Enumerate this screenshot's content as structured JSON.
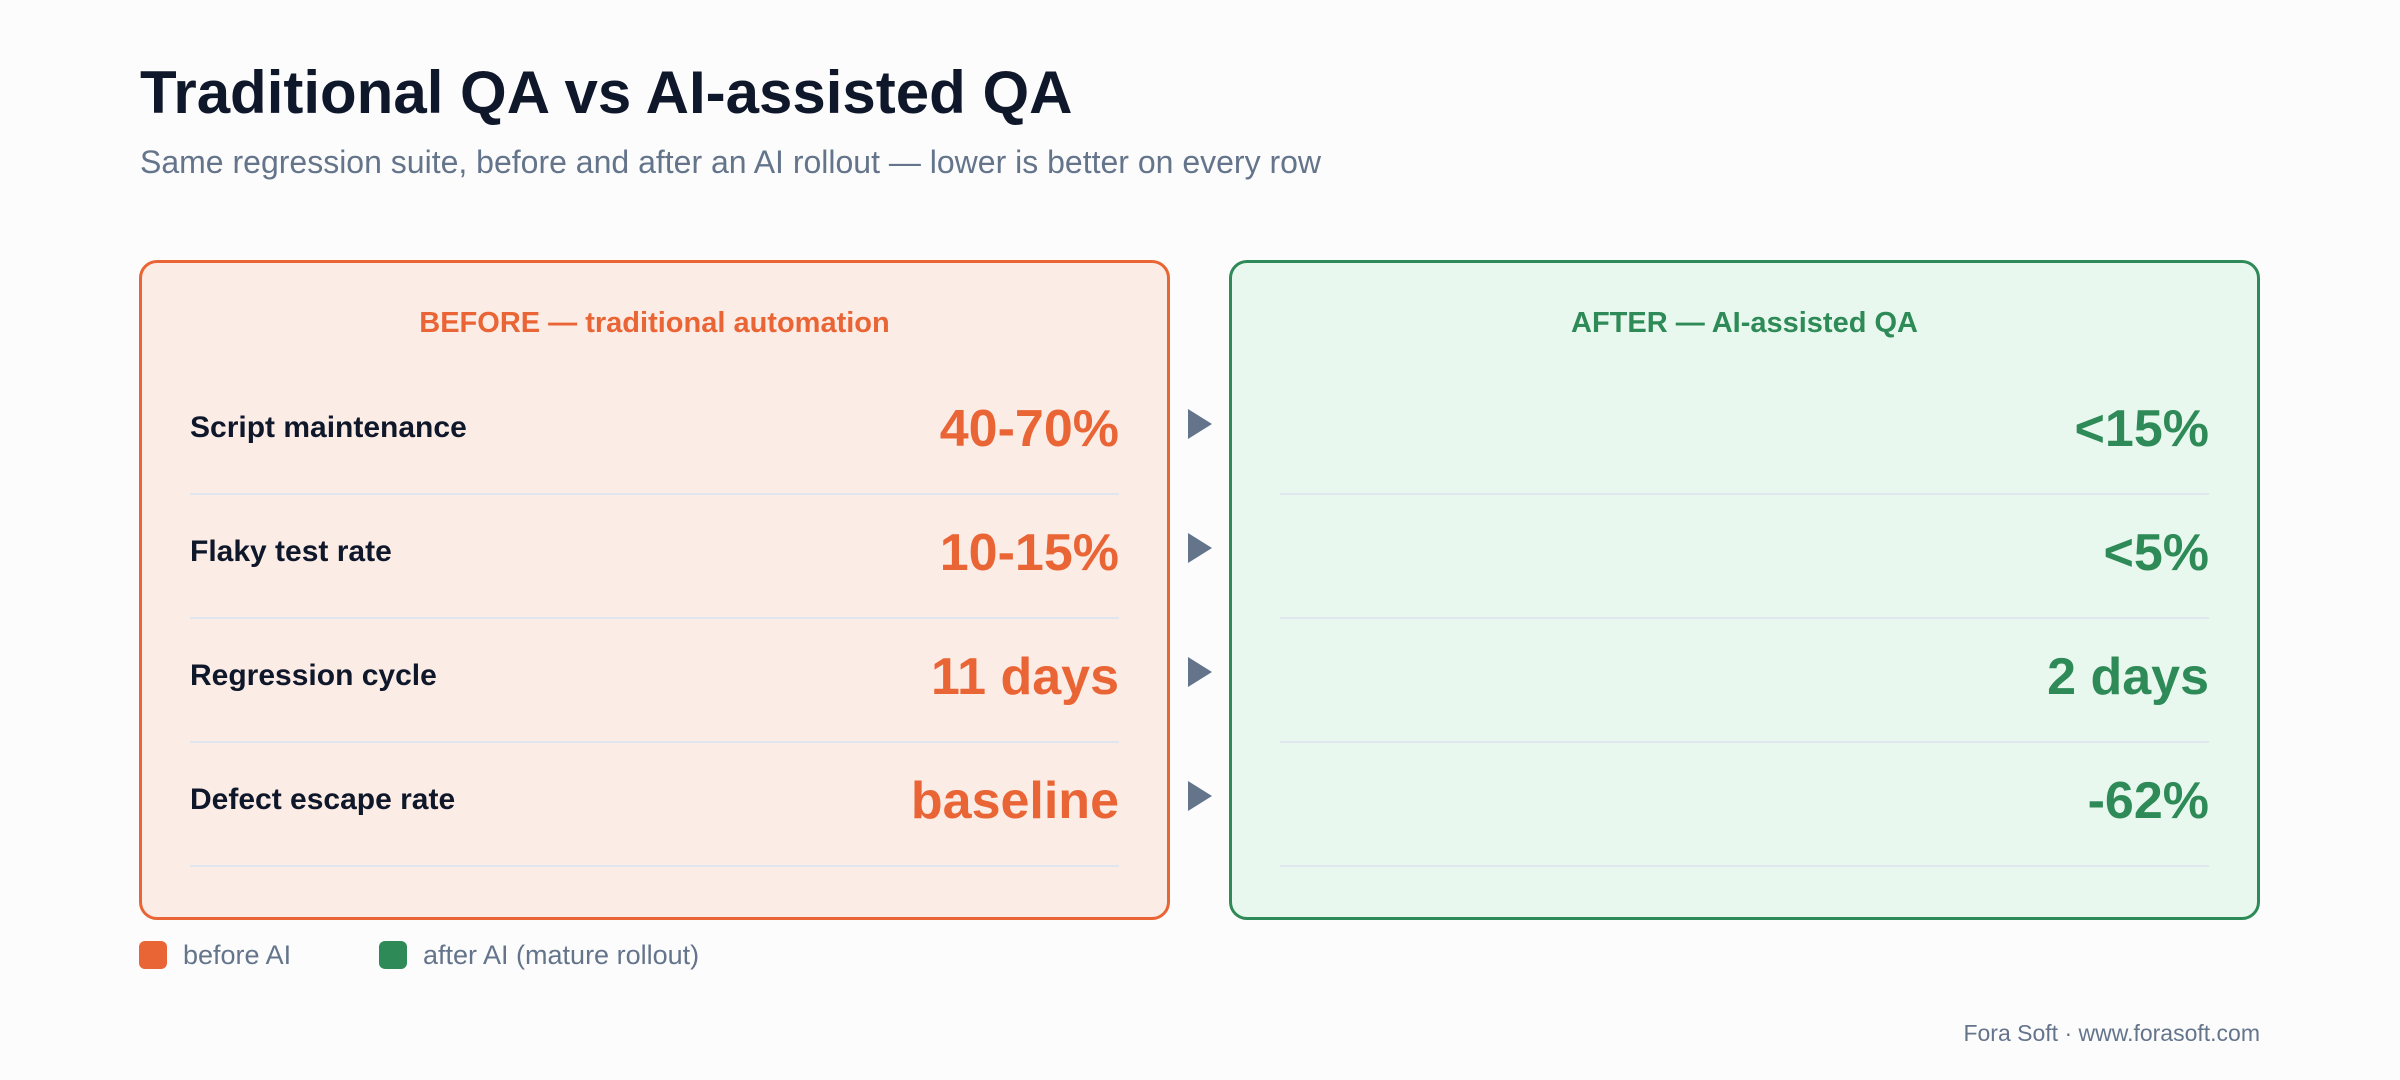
{
  "title": "Traditional QA vs AI-assisted QA",
  "subtitle": "Same regression suite, before and after an AI rollout — lower is better on every row",
  "colors": {
    "before_accent": "#ea6535",
    "before_fill": "#fcece6",
    "after_accent": "#2e8a57",
    "after_fill": "#e9f8ef",
    "arrow": "#64748b"
  },
  "before": {
    "heading": "BEFORE — traditional automation",
    "rows": [
      {
        "label": "Script maintenance",
        "value": "40-70%"
      },
      {
        "label": "Flaky test rate",
        "value": "10-15%"
      },
      {
        "label": "Regression cycle",
        "value": "11 days"
      },
      {
        "label": "Defect escape rate",
        "value": "baseline"
      }
    ]
  },
  "after": {
    "heading": "AFTER — AI-assisted QA",
    "rows": [
      {
        "value": "<15%"
      },
      {
        "value": "<5%"
      },
      {
        "value": "2 days"
      },
      {
        "value": "-62%"
      }
    ]
  },
  "arrow_icon": "triangle-right-icon",
  "legend": [
    {
      "label": "before AI",
      "color": "#ea6535"
    },
    {
      "label": "after AI (mature rollout)",
      "color": "#2e8a57"
    }
  ],
  "footer": "Fora Soft · www.forasoft.com"
}
